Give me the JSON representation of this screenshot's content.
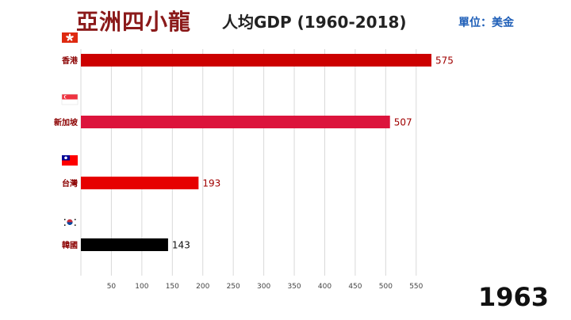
{
  "header": {
    "title": "亞洲四小龍",
    "subtitle": "人均GDP (1960-2018)",
    "unit": "單位：美金"
  },
  "year": "1963",
  "chart_data": {
    "type": "bar",
    "orientation": "horizontal",
    "categories": [
      "香港",
      "新加坡",
      "台灣",
      "韓國"
    ],
    "values": [
      575,
      507,
      193,
      143
    ],
    "colors": [
      "#cc0000",
      "#dc143c",
      "#e60000",
      "#000000"
    ],
    "label_colors": [
      "#a00000",
      "#a00000",
      "#a00000",
      "#111111"
    ],
    "flag_icons": [
      "hong-kong-flag-icon",
      "singapore-flag-icon",
      "taiwan-flag-icon",
      "south-korea-flag-icon"
    ],
    "x_ticks": [
      50,
      100,
      150,
      200,
      250,
      300,
      350,
      400,
      450,
      500,
      550
    ],
    "xlim": [
      0,
      575
    ],
    "grid": true,
    "grid_color": "#d9d9d9"
  }
}
